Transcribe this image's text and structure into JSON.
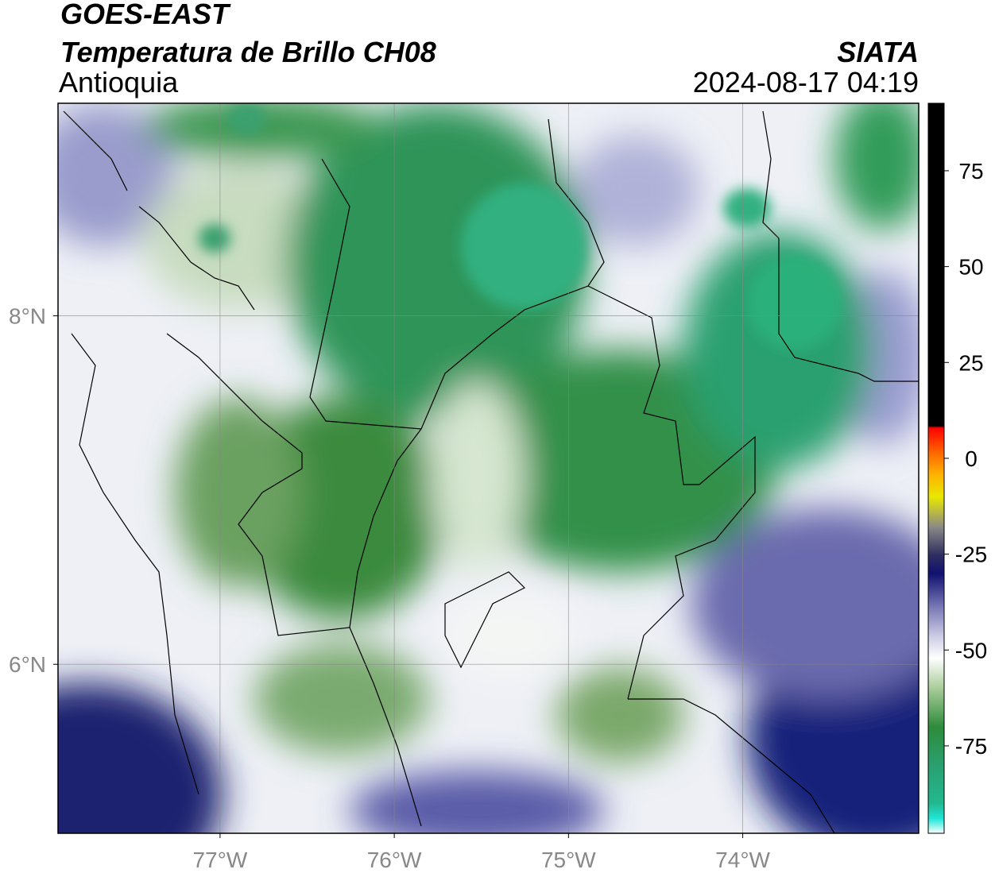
{
  "header": {
    "title": "GOES-EAST",
    "subtitle": "Temperatura de Brillo CH08",
    "region": "Antioquia",
    "source": "SIATA",
    "datetime": "2024-08-17 04:19"
  },
  "map": {
    "xlim": [
      -77.93,
      -72.99
    ],
    "ylim": [
      5.03,
      9.22
    ],
    "xticks": [
      {
        "value": -77,
        "label": "77°W"
      },
      {
        "value": -76,
        "label": "76°W"
      },
      {
        "value": -75,
        "label": "75°W"
      },
      {
        "value": -74,
        "label": "74°W"
      }
    ],
    "yticks": [
      {
        "value": 8,
        "label": "8°N"
      },
      {
        "value": 6,
        "label": "6°N"
      }
    ],
    "grid": true
  },
  "colorbar": {
    "clim": [
      -97.8,
      92.6
    ],
    "ticks": [
      75,
      50,
      25,
      0,
      -25,
      -50,
      -75
    ],
    "colormap": [
      {
        "value": -97.8,
        "color": "#ffffff"
      },
      {
        "value": -94,
        "color": "#20e8d8"
      },
      {
        "value": -90,
        "color": "#22b890"
      },
      {
        "value": -80,
        "color": "#2aa070"
      },
      {
        "value": -70,
        "color": "#2e8b3a"
      },
      {
        "value": -60,
        "color": "#a8cc98"
      },
      {
        "value": -52,
        "color": "#ffffff"
      },
      {
        "value": -46,
        "color": "#c8c8e4"
      },
      {
        "value": -38,
        "color": "#7070b0"
      },
      {
        "value": -30,
        "color": "#101070"
      },
      {
        "value": -25,
        "color": "#303060"
      },
      {
        "value": -18,
        "color": "#888888"
      },
      {
        "value": -10,
        "color": "#e8e800"
      },
      {
        "value": -4,
        "color": "#ffb000"
      },
      {
        "value": 2,
        "color": "#ff6000"
      },
      {
        "value": 8,
        "color": "#ff0000"
      },
      {
        "value": 8.5,
        "color": "#000000"
      },
      {
        "value": 92.6,
        "color": "#000000"
      }
    ]
  }
}
